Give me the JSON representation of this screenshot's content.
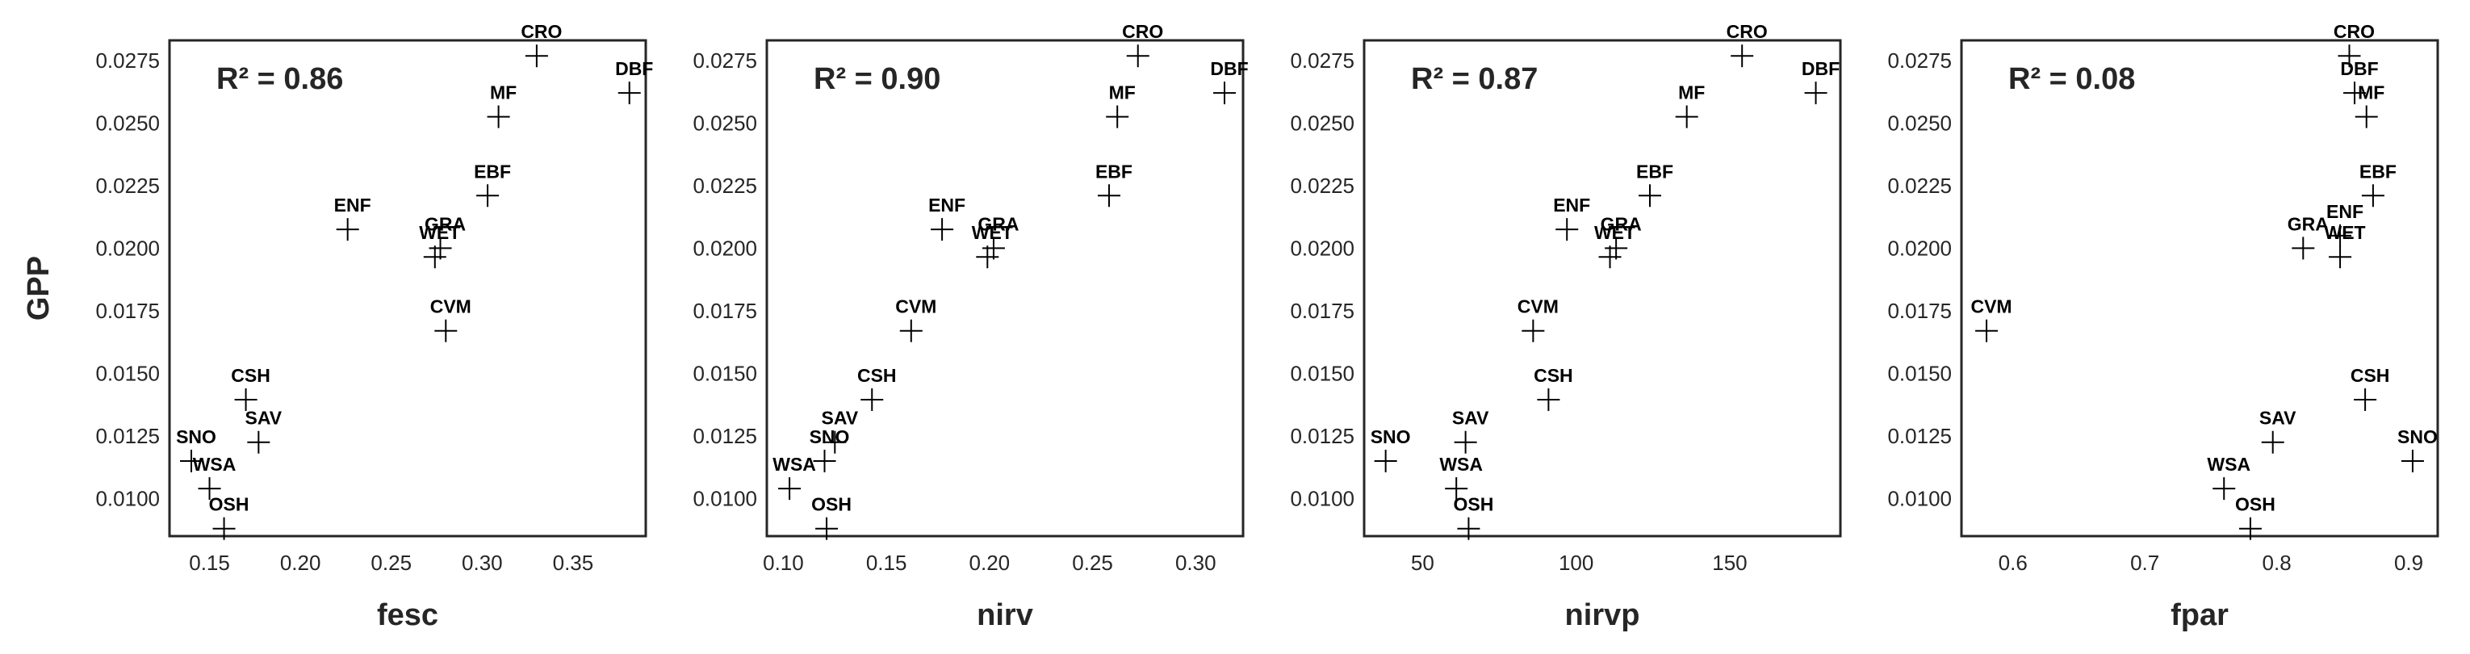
{
  "chart_data": [
    {
      "type": "scatter",
      "xlabel": "fesc",
      "ylabel": "GPP",
      "annotation": "R² = 0.86",
      "xlim": [
        0.128,
        0.39
      ],
      "ylim": [
        0.0085,
        0.0283
      ],
      "xticks": [
        "0.15",
        "0.20",
        "0.25",
        "0.30",
        "0.35"
      ],
      "xtick_values": [
        0.15,
        0.2,
        0.25,
        0.3,
        0.35
      ],
      "points": [
        {
          "label": "CRO",
          "x": 0.33,
          "y": 0.02768
        },
        {
          "label": "DBF",
          "x": 0.381,
          "y": 0.0262
        },
        {
          "label": "MF",
          "x": 0.309,
          "y": 0.02525
        },
        {
          "label": "EBF",
          "x": 0.303,
          "y": 0.0221
        },
        {
          "label": "ENF",
          "x": 0.226,
          "y": 0.02075
        },
        {
          "label": "GRA",
          "x": 0.277,
          "y": 0.02
        },
        {
          "label": "WET",
          "x": 0.274,
          "y": 0.01965
        },
        {
          "label": "CVM",
          "x": 0.28,
          "y": 0.0167
        },
        {
          "label": "CSH",
          "x": 0.17,
          "y": 0.01395
        },
        {
          "label": "SAV",
          "x": 0.177,
          "y": 0.01225
        },
        {
          "label": "SNO",
          "x": 0.14,
          "y": 0.0115
        },
        {
          "label": "WSA",
          "x": 0.15,
          "y": 0.0104
        },
        {
          "label": "OSH",
          "x": 0.158,
          "y": 0.0088
        }
      ]
    },
    {
      "type": "scatter",
      "xlabel": "nirv",
      "ylabel": "",
      "annotation": "R² = 0.90",
      "xlim": [
        0.092,
        0.323
      ],
      "ylim": [
        0.0085,
        0.0283
      ],
      "xticks": [
        "0.10",
        "0.15",
        "0.20",
        "0.25",
        "0.30"
      ],
      "xtick_values": [
        0.1,
        0.15,
        0.2,
        0.25,
        0.3
      ],
      "points": [
        {
          "label": "CRO",
          "x": 0.272,
          "y": 0.02768
        },
        {
          "label": "DBF",
          "x": 0.314,
          "y": 0.0262
        },
        {
          "label": "MF",
          "x": 0.262,
          "y": 0.02525
        },
        {
          "label": "EBF",
          "x": 0.258,
          "y": 0.0221
        },
        {
          "label": "ENF",
          "x": 0.177,
          "y": 0.02075
        },
        {
          "label": "GRA",
          "x": 0.202,
          "y": 0.02
        },
        {
          "label": "WET",
          "x": 0.199,
          "y": 0.01965
        },
        {
          "label": "CVM",
          "x": 0.162,
          "y": 0.0167
        },
        {
          "label": "CSH",
          "x": 0.143,
          "y": 0.01395
        },
        {
          "label": "SAV",
          "x": 0.125,
          "y": 0.01225
        },
        {
          "label": "SNO",
          "x": 0.12,
          "y": 0.0115
        },
        {
          "label": "WSA",
          "x": 0.103,
          "y": 0.0104
        },
        {
          "label": "OSH",
          "x": 0.121,
          "y": 0.0088
        }
      ]
    },
    {
      "type": "scatter",
      "xlabel": "nirvp",
      "ylabel": "",
      "annotation": "R² = 0.87",
      "xlim": [
        31,
        186
      ],
      "ylim": [
        0.0085,
        0.0283
      ],
      "xticks": [
        "50",
        "100",
        "150"
      ],
      "xtick_values": [
        50,
        100,
        150
      ],
      "points": [
        {
          "label": "CRO",
          "x": 154,
          "y": 0.02768
        },
        {
          "label": "DBF",
          "x": 178,
          "y": 0.0262
        },
        {
          "label": "MF",
          "x": 136,
          "y": 0.02525
        },
        {
          "label": "EBF",
          "x": 124,
          "y": 0.0221
        },
        {
          "label": "ENF",
          "x": 97,
          "y": 0.02075
        },
        {
          "label": "GRA",
          "x": 113,
          "y": 0.02
        },
        {
          "label": "WET",
          "x": 111,
          "y": 0.01965
        },
        {
          "label": "CVM",
          "x": 86,
          "y": 0.0167
        },
        {
          "label": "CSH",
          "x": 91,
          "y": 0.01395
        },
        {
          "label": "SAV",
          "x": 64,
          "y": 0.01225
        },
        {
          "label": "SNO",
          "x": 38,
          "y": 0.0115
        },
        {
          "label": "WSA",
          "x": 61,
          "y": 0.0104
        },
        {
          "label": "OSH",
          "x": 65,
          "y": 0.0088
        }
      ]
    },
    {
      "type": "scatter",
      "xlabel": "fpar",
      "ylabel": "",
      "annotation": "R² = 0.08",
      "xlim": [
        0.561,
        0.922
      ],
      "ylim": [
        0.0085,
        0.0283
      ],
      "xticks": [
        "0.6",
        "0.7",
        "0.8",
        "0.9"
      ],
      "xtick_values": [
        0.6,
        0.7,
        0.8,
        0.9
      ],
      "points": [
        {
          "label": "CRO",
          "x": 0.855,
          "y": 0.02768
        },
        {
          "label": "DBF",
          "x": 0.859,
          "y": 0.0262
        },
        {
          "label": "MF",
          "x": 0.868,
          "y": 0.02525
        },
        {
          "label": "EBF",
          "x": 0.873,
          "y": 0.0221
        },
        {
          "label": "ENF",
          "x": 0.848,
          "y": 0.0205
        },
        {
          "label": "GRA",
          "x": 0.82,
          "y": 0.02
        },
        {
          "label": "WET",
          "x": 0.848,
          "y": 0.01965
        },
        {
          "label": "CVM",
          "x": 0.58,
          "y": 0.0167
        },
        {
          "label": "CSH",
          "x": 0.867,
          "y": 0.01395
        },
        {
          "label": "SAV",
          "x": 0.797,
          "y": 0.01225
        },
        {
          "label": "SNO",
          "x": 0.903,
          "y": 0.0115
        },
        {
          "label": "WSA",
          "x": 0.76,
          "y": 0.0104
        },
        {
          "label": "OSH",
          "x": 0.78,
          "y": 0.0088
        }
      ]
    }
  ],
  "yticks": [
    "0.0100",
    "0.0125",
    "0.0150",
    "0.0175",
    "0.0200",
    "0.0225",
    "0.0250",
    "0.0275"
  ],
  "ytick_values": [
    0.01,
    0.0125,
    0.015,
    0.0175,
    0.02,
    0.0225,
    0.025,
    0.0275
  ]
}
